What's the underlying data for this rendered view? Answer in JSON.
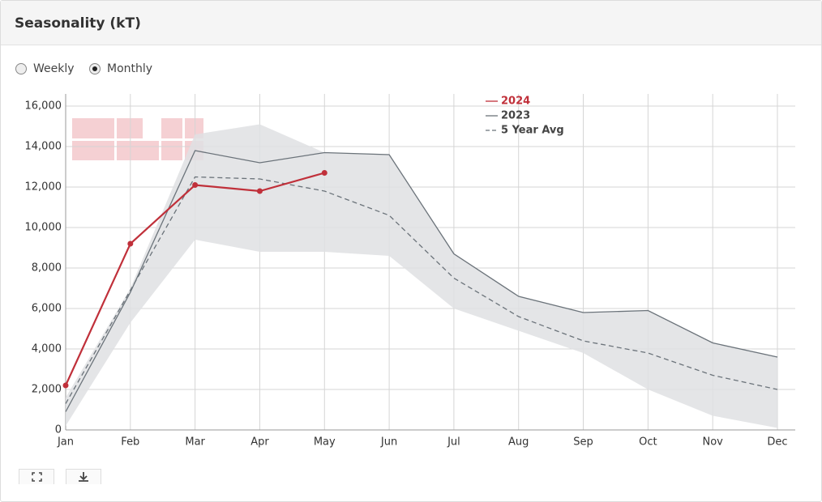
{
  "header": {
    "title": "Seasonality (kT)"
  },
  "view_options": [
    {
      "label": "Weekly",
      "selected": false
    },
    {
      "label": "Monthly",
      "selected": true
    }
  ],
  "chart_data": {
    "type": "line",
    "categories": [
      "Jan",
      "Feb",
      "Mar",
      "Apr",
      "May",
      "Jun",
      "Jul",
      "Aug",
      "Sep",
      "Oct",
      "Nov",
      "Dec"
    ],
    "series": [
      {
        "name": "2024",
        "color": "#c0303a",
        "style": "solid",
        "markers": true,
        "values": [
          2200,
          9200,
          12100,
          11800,
          12700,
          null,
          null,
          null,
          null,
          null,
          null,
          null
        ]
      },
      {
        "name": "2023",
        "color": "#6b737a",
        "style": "solid",
        "markers": false,
        "values": [
          900,
          6800,
          13800,
          13200,
          13700,
          13600,
          8700,
          6600,
          5800,
          5900,
          4300,
          3600
        ]
      },
      {
        "name": "5 Year Avg",
        "color": "#6b737a",
        "style": "dashed",
        "markers": false,
        "values": [
          1300,
          6900,
          12500,
          12400,
          11800,
          10600,
          7500,
          5600,
          4400,
          3800,
          2700,
          2000
        ]
      }
    ],
    "range": {
      "color": "#dfe1e3",
      "low": [
        200,
        5300,
        9400,
        8800,
        8800,
        8600,
        6000,
        4900,
        3800,
        2000,
        700,
        100
      ],
      "high": [
        1600,
        7000,
        14600,
        15100,
        13700,
        13600,
        8700,
        6600,
        5800,
        5900,
        4300,
        3600
      ]
    },
    "ylim": [
      0,
      16000
    ],
    "yticks": [
      0,
      {
        "value": 2000,
        "label": "2,000"
      },
      {
        "value": 4000,
        "label": "4,000"
      },
      {
        "value": 6000,
        "label": "6,000"
      },
      {
        "value": 8000,
        "label": "8,000"
      },
      {
        "value": 10000,
        "label": "10,000"
      },
      {
        "value": 12000,
        "label": "12,000"
      },
      {
        "value": 14000,
        "label": "14,000"
      },
      {
        "value": 16000,
        "label": "16,000"
      }
    ],
    "grid": true
  }
}
